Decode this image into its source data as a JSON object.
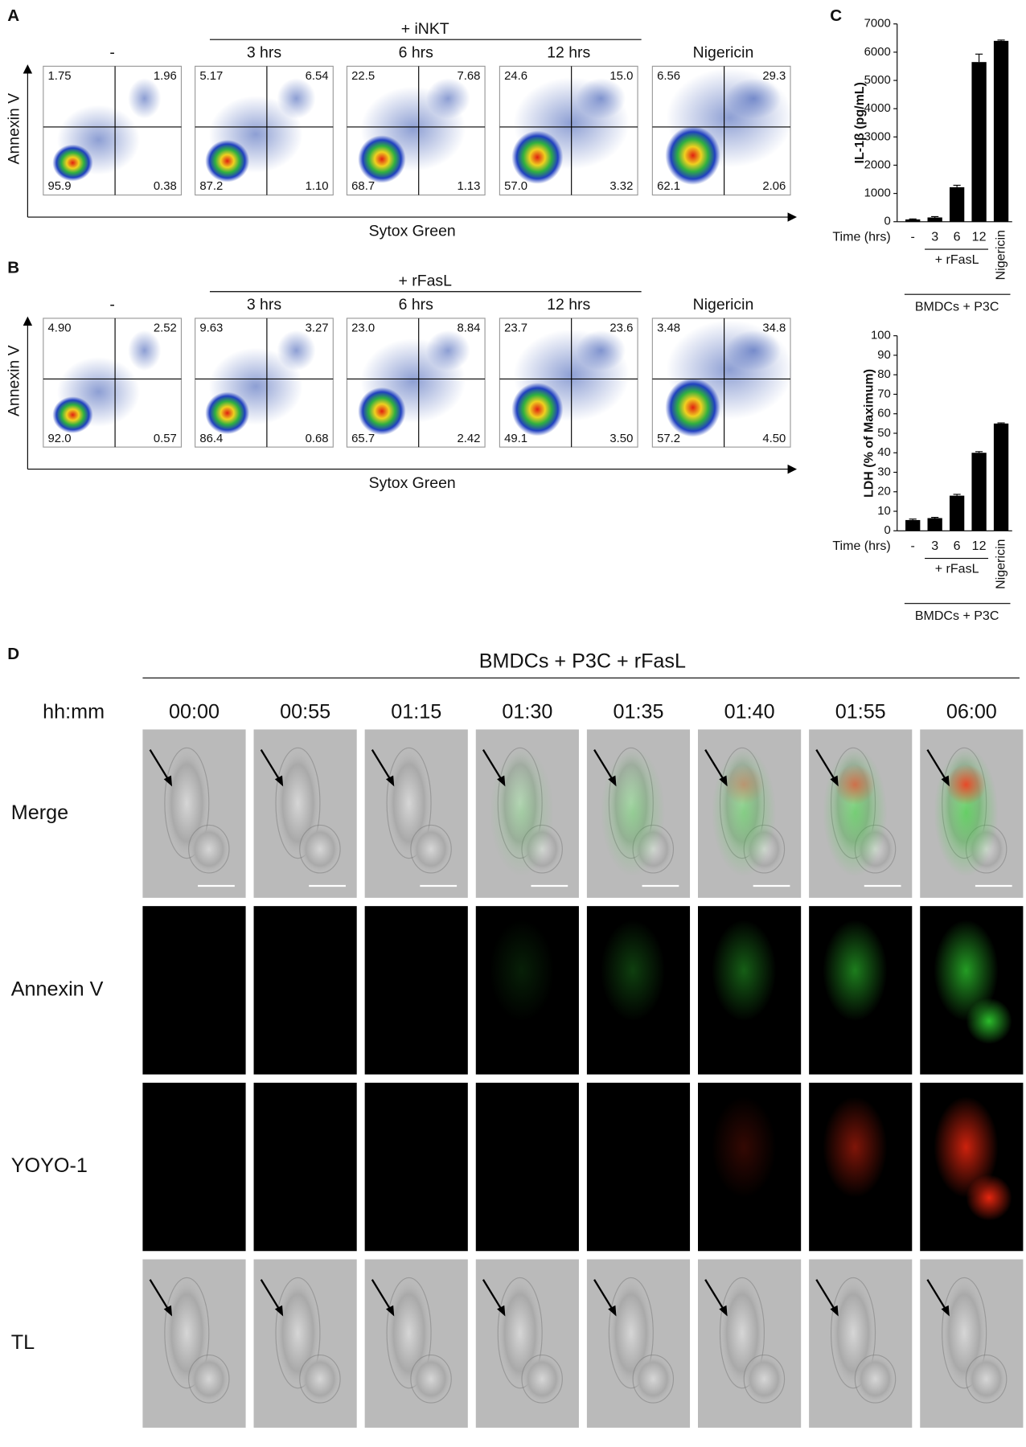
{
  "panel_a": {
    "label": "A",
    "treatment": "+ iNKT",
    "y_label": "Annexin V",
    "x_label": "Sytox Green",
    "plots": [
      {
        "title": "-",
        "upper_left": "1.75",
        "upper_right": "1.96",
        "lower_left": "95.9",
        "lower_right": "0.38"
      },
      {
        "title": "3 hrs",
        "upper_left": "5.17",
        "upper_right": "6.54",
        "lower_left": "87.2",
        "lower_right": "1.10"
      },
      {
        "title": "6 hrs",
        "upper_left": "22.5",
        "upper_right": "7.68",
        "lower_left": "68.7",
        "lower_right": "1.13"
      },
      {
        "title": "12 hrs",
        "upper_left": "24.6",
        "upper_right": "15.0",
        "lower_left": "57.0",
        "lower_right": "3.32"
      },
      {
        "title": "Nigericin",
        "upper_left": "6.56",
        "upper_right": "29.3",
        "lower_left": "62.1",
        "lower_right": "2.06"
      }
    ]
  },
  "panel_b": {
    "label": "B",
    "treatment": "+ rFasL",
    "y_label": "Annexin V",
    "x_label": "Sytox Green",
    "plots": [
      {
        "title": "-",
        "upper_left": "4.90",
        "upper_right": "2.52",
        "lower_left": "92.0",
        "lower_right": "0.57"
      },
      {
        "title": "3 hrs",
        "upper_left": "9.63",
        "upper_right": "3.27",
        "lower_left": "86.4",
        "lower_right": "0.68"
      },
      {
        "title": "6 hrs",
        "upper_left": "23.0",
        "upper_right": "8.84",
        "lower_left": "65.7",
        "lower_right": "2.42"
      },
      {
        "title": "12 hrs",
        "upper_left": "23.7",
        "upper_right": "23.6",
        "lower_left": "49.1",
        "lower_right": "3.50"
      },
      {
        "title": "Nigericin",
        "upper_left": "3.48",
        "upper_right": "34.8",
        "lower_left": "57.2",
        "lower_right": "4.50"
      }
    ]
  },
  "panel_c": {
    "label": "C"
  },
  "chart_data": [
    {
      "type": "bar",
      "y_label": "IL-1β (pg/mL)",
      "x_label": "Time (hrs)",
      "categories": [
        "-",
        "3",
        "6",
        "12",
        "Nigericin"
      ],
      "values": [
        80,
        150,
        1220,
        5650,
        6400
      ],
      "errors": [
        20,
        30,
        70,
        280,
        30
      ],
      "group_label": "+ rFasL",
      "footer": "BMDCs + P3C",
      "ylim": [
        0,
        7000
      ],
      "yticks": [
        0,
        1000,
        2000,
        3000,
        4000,
        5000,
        6000,
        7000
      ],
      "color": "#000000"
    },
    {
      "type": "bar",
      "y_label": "LDH (% of Maximum)",
      "x_label": "Time (hrs)",
      "categories": [
        "-",
        "3",
        "6",
        "12",
        "Nigericin"
      ],
      "values": [
        5.5,
        6.5,
        18,
        40,
        55
      ],
      "errors": [
        0.5,
        0.4,
        0.7,
        0.6,
        0.3
      ],
      "group_label": "+ rFasL",
      "footer": "BMDCs + P3C",
      "ylim": [
        0,
        100
      ],
      "yticks": [
        0,
        10,
        20,
        30,
        40,
        50,
        60,
        70,
        80,
        90,
        100
      ],
      "color": "#000000"
    }
  ],
  "panel_d": {
    "label": "D",
    "title": "BMDCs + P3C + rFasL",
    "time_label": "hh:mm",
    "times": [
      "00:00",
      "00:55",
      "01:15",
      "01:30",
      "01:35",
      "01:40",
      "01:55",
      "06:00"
    ],
    "rows": [
      "Merge",
      "Annexin V",
      "YOYO-1",
      "TL"
    ]
  }
}
